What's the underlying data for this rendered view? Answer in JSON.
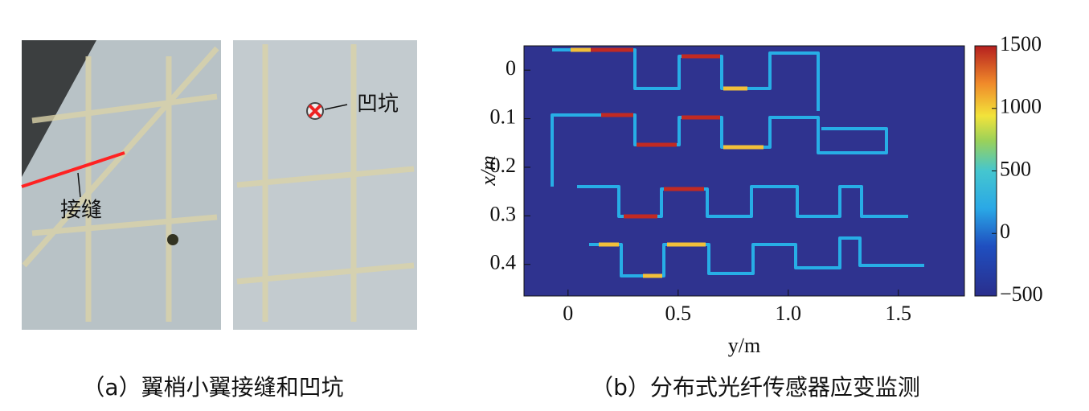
{
  "photo_labels": {
    "joint": "接缝",
    "dent": "凹坑"
  },
  "captions": {
    "a": "（a）翼梢小翼接缝和凹坑",
    "b": "（b）分布式光纤传感器应变监测"
  },
  "chart_data": {
    "type": "heatmap",
    "xlabel": "y/m",
    "ylabel": "x/m",
    "xlim": [
      -0.2,
      1.8
    ],
    "xticks": [
      0,
      0.5,
      {
        "value": 1,
        "label": "1.0"
      },
      1.5
    ],
    "ylim": [
      -0.05,
      0.465
    ],
    "yticks": [
      0,
      0.1,
      0.2,
      0.3,
      0.4
    ],
    "y_inverted": true,
    "colorbar": {
      "lim": [
        -500,
        1500
      ],
      "ticks": [
        {
          "value": -500,
          "label": "−500"
        },
        0,
        500,
        1000,
        1500
      ]
    }
  }
}
